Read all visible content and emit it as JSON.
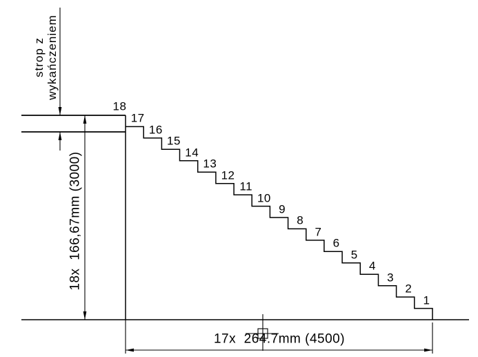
{
  "drawing": {
    "slab_label": "strop z\nwykańczeniem",
    "vertical_dimension": "18x  166,67mm (3000)",
    "horizontal_dimension": "17x  264.7mm (4500)",
    "riser_count": 18,
    "tread_count": 17,
    "step_labels": [
      "1",
      "2",
      "3",
      "4",
      "5",
      "6",
      "7",
      "8",
      "9",
      "10",
      "11",
      "12",
      "13",
      "14",
      "15",
      "16",
      "17",
      "18"
    ],
    "colors": {
      "line": "#000000",
      "background": "#ffffff"
    }
  }
}
